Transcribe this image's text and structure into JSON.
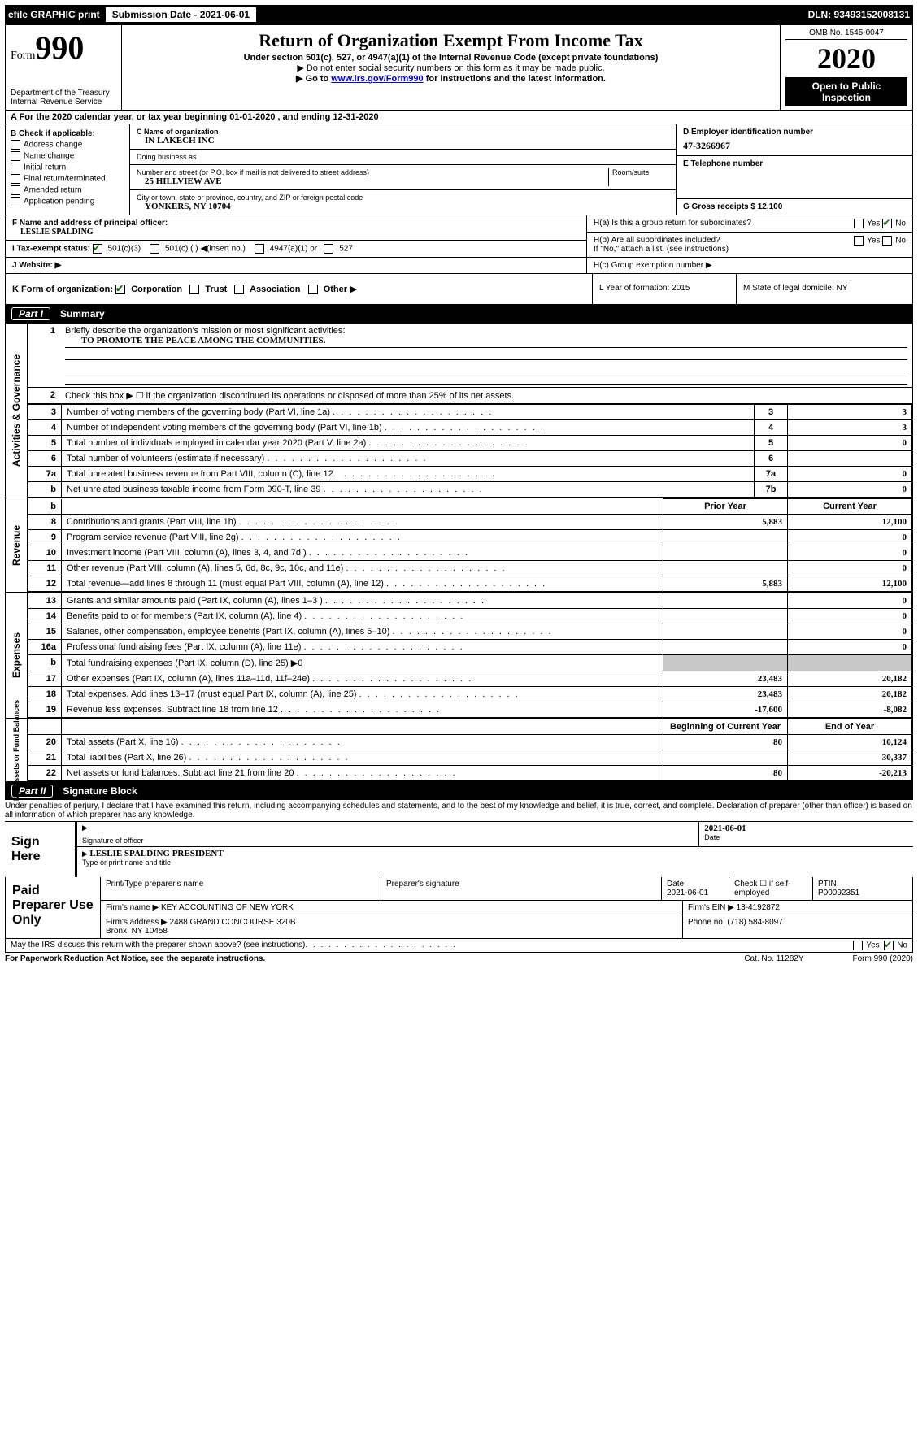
{
  "top": {
    "efile": "efile GRAPHIC print",
    "submission_label": "Submission Date - 2021-06-01",
    "dln": "DLN: 93493152008131"
  },
  "header": {
    "form_prefix": "Form",
    "form_number": "990",
    "dept": "Department of the Treasury\nInternal Revenue Service",
    "title": "Return of Organization Exempt From Income Tax",
    "subtitle": "Under section 501(c), 527, or 4947(a)(1) of the Internal Revenue Code (except private foundations)",
    "note1": "▶ Do not enter social security numbers on this form as it may be made public.",
    "note2_pre": "▶ Go to ",
    "note2_link": "www.irs.gov/Form990",
    "note2_post": " for instructions and the latest information.",
    "omb": "OMB No. 1545-0047",
    "year": "2020",
    "open": "Open to Public\nInspection"
  },
  "line_a": "A For the 2020 calendar year, or tax year beginning 01-01-2020     , and ending 12-31-2020",
  "box_b": {
    "title": "B Check if applicable:",
    "items": [
      "Address change",
      "Name change",
      "Initial return",
      "Final return/terminated",
      "Amended return",
      "Application pending"
    ]
  },
  "box_c": {
    "name_lbl": "C Name of organization",
    "name": "IN LAKECH INC",
    "dba_lbl": "Doing business as",
    "addr_lbl": "Number and street (or P.O. box if mail is not delivered to street address)",
    "room_lbl": "Room/suite",
    "addr": "25 HILLVIEW AVE",
    "city_lbl": "City or town, state or province, country, and ZIP or foreign postal code",
    "city": "YONKERS, NY  10704"
  },
  "box_d": {
    "lbl": "D Employer identification number",
    "val": "47-3266967"
  },
  "box_e": {
    "lbl": "E Telephone number"
  },
  "box_g": {
    "lbl": "G Gross receipts $ 12,100"
  },
  "box_f": {
    "lbl": "F  Name and address of principal officer:",
    "val": "LESLIE SPALDING"
  },
  "box_h": {
    "ha": "H(a)  Is this a group return for subordinates?",
    "hb": "H(b)  Are all subordinates included?",
    "hb_note": "If \"No,\" attach a list. (see instructions)",
    "hc": "H(c)  Group exemption number ▶",
    "yes": "Yes",
    "no": "No"
  },
  "box_i": {
    "lbl": "I    Tax-exempt status:",
    "opt1": "501(c)(3)",
    "opt2": "501(c) (  ) ◀(insert no.)",
    "opt3": "4947(a)(1) or",
    "opt4": "527"
  },
  "box_j": {
    "lbl": "J    Website: ▶"
  },
  "box_k": {
    "lbl": "K Form of organization:",
    "o1": "Corporation",
    "o2": "Trust",
    "o3": "Association",
    "o4": "Other ▶"
  },
  "box_l": {
    "lbl": "L Year of formation: 2015"
  },
  "box_m": {
    "lbl": "M State of legal domicile: NY"
  },
  "part1": {
    "label": "Part I",
    "title": "Summary"
  },
  "summary": {
    "s1_lbl": "Briefly describe the organization's mission or most significant activities:",
    "s1_val": "TO PROMOTE THE PEACE AMONG THE COMMUNITIES.",
    "s2_lbl": "Check this box ▶ ☐  if the organization discontinued its operations or disposed of more than 25% of its net assets.",
    "rows_a": [
      {
        "n": "3",
        "label": "Number of voting members of the governing body (Part VI, line 1a)",
        "key": "3",
        "val": "3"
      },
      {
        "n": "4",
        "label": "Number of independent voting members of the governing body (Part VI, line 1b)",
        "key": "4",
        "val": "3"
      },
      {
        "n": "5",
        "label": "Total number of individuals employed in calendar year 2020 (Part V, line 2a)",
        "key": "5",
        "val": "0"
      },
      {
        "n": "6",
        "label": "Total number of volunteers (estimate if necessary)",
        "key": "6",
        "val": ""
      },
      {
        "n": "7a",
        "label": "Total unrelated business revenue from Part VIII, column (C), line 12",
        "key": "7a",
        "val": "0"
      },
      {
        "n": "b",
        "label": "Net unrelated business taxable income from Form 990-T, line 39",
        "key": "7b",
        "val": "0"
      }
    ],
    "prior_hdr": "Prior Year",
    "curr_hdr": "Current Year",
    "rev_rows": [
      {
        "n": "8",
        "label": "Contributions and grants (Part VIII, line 1h)",
        "prior": "5,883",
        "curr": "12,100"
      },
      {
        "n": "9",
        "label": "Program service revenue (Part VIII, line 2g)",
        "prior": "",
        "curr": "0"
      },
      {
        "n": "10",
        "label": "Investment income (Part VIII, column (A), lines 3, 4, and 7d )",
        "prior": "",
        "curr": "0"
      },
      {
        "n": "11",
        "label": "Other revenue (Part VIII, column (A), lines 5, 6d, 8c, 9c, 10c, and 11e)",
        "prior": "",
        "curr": "0"
      },
      {
        "n": "12",
        "label": "Total revenue—add lines 8 through 11 (must equal Part VIII, column (A), line 12)",
        "prior": "5,883",
        "curr": "12,100"
      }
    ],
    "exp_rows": [
      {
        "n": "13",
        "label": "Grants and similar amounts paid (Part IX, column (A), lines 1–3 )",
        "prior": "",
        "curr": "0"
      },
      {
        "n": "14",
        "label": "Benefits paid to or for members (Part IX, column (A), line 4)",
        "prior": "",
        "curr": "0"
      },
      {
        "n": "15",
        "label": "Salaries, other compensation, employee benefits (Part IX, column (A), lines 5–10)",
        "prior": "",
        "curr": "0"
      },
      {
        "n": "16a",
        "label": "Professional fundraising fees (Part IX, column (A), line 11e)",
        "prior": "",
        "curr": "0"
      },
      {
        "n": "b",
        "label": "Total fundraising expenses (Part IX, column (D), line 25) ▶0",
        "prior": "GRAY",
        "curr": "GRAY"
      },
      {
        "n": "17",
        "label": "Other expenses (Part IX, column (A), lines 11a–11d, 11f–24e)",
        "prior": "23,483",
        "curr": "20,182"
      },
      {
        "n": "18",
        "label": "Total expenses. Add lines 13–17 (must equal Part IX, column (A), line 25)",
        "prior": "23,483",
        "curr": "20,182"
      },
      {
        "n": "19",
        "label": "Revenue less expenses. Subtract line 18 from line 12",
        "prior": "-17,600",
        "curr": "-8,082"
      }
    ],
    "net_hdr1": "Beginning of Current Year",
    "net_hdr2": "End of Year",
    "net_rows": [
      {
        "n": "20",
        "label": "Total assets (Part X, line 16)",
        "prior": "80",
        "curr": "10,124"
      },
      {
        "n": "21",
        "label": "Total liabilities (Part X, line 26)",
        "prior": "",
        "curr": "30,337"
      },
      {
        "n": "22",
        "label": "Net assets or fund balances. Subtract line 21 from line 20",
        "prior": "80",
        "curr": "-20,213"
      }
    ],
    "side_a": "Activities & Governance",
    "side_b": "Revenue",
    "side_c": "Expenses",
    "side_d": "Net Assets or Fund Balances"
  },
  "part2": {
    "label": "Part II",
    "title": "Signature Block"
  },
  "sig": {
    "perjury": "Under penalties of perjury, I declare that I have examined this return, including accompanying schedules and statements, and to the best of my knowledge and belief, it is true, correct, and complete. Declaration of preparer (other than officer) is based on all information of which preparer has any knowledge.",
    "sign_here": "Sign Here",
    "date": "2021-06-01",
    "date_lbl": "Date",
    "sig_officer_lbl": "Signature of officer",
    "officer": "LESLIE SPALDING  PRESIDENT",
    "officer_lbl": "Type or print name and title"
  },
  "paid": {
    "lbl": "Paid Preparer Use Only",
    "print_lbl": "Print/Type preparer's name",
    "sig_lbl": "Preparer's signature",
    "date_lbl": "Date",
    "date": "2021-06-01",
    "check_lbl": "Check ☐ if self-employed",
    "ptin_lbl": "PTIN",
    "ptin": "P00092351",
    "firm_lbl": "Firm's name    ▶",
    "firm": "KEY ACCOUNTING OF NEW YORK",
    "ein_lbl": "Firm's EIN ▶ 13-4192872",
    "addr_lbl": "Firm's address ▶",
    "addr": "2488 GRAND CONCOURSE 320B\nBronx, NY  10458",
    "phone_lbl": "Phone no. (718) 584-8097"
  },
  "footer": {
    "discuss": "May the IRS discuss this return with the preparer shown above? (see instructions)",
    "paperwork": "For Paperwork Reduction Act Notice, see the separate instructions.",
    "cat": "Cat. No. 11282Y",
    "form": "Form 990 (2020)"
  }
}
